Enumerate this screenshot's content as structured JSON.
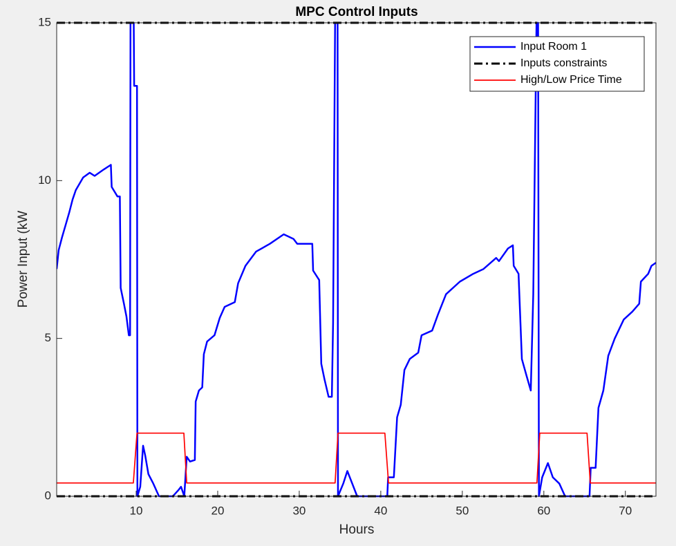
{
  "chart_data": {
    "type": "line",
    "title": "MPC Control Inputs",
    "x_label": "Hours",
    "y_label": "Power Input (kW",
    "xlim": [
      0.25,
      73.75
    ],
    "ylim": [
      0,
      15
    ],
    "xticks": [
      10,
      20,
      30,
      40,
      50,
      60,
      70
    ],
    "yticks": [
      0,
      5,
      10,
      15
    ],
    "legend": "top-right",
    "series": [
      {
        "name": "Input Room 1",
        "color": "#0000ff",
        "x": [
          0.25,
          0.5,
          0.9,
          1.35,
          1.8,
          2.2,
          2.6,
          3.5,
          4.3,
          4.9,
          6.0,
          6.9,
          7.0,
          7.7,
          8.0,
          8.1,
          8.5,
          8.8,
          9.1,
          9.25,
          9.3,
          9.7,
          9.75,
          10.1,
          10.15,
          10.5,
          10.85,
          11.1,
          11.5,
          12.1,
          12.8,
          13.6,
          14.5,
          15.2,
          15.5,
          15.9,
          16.2,
          16.6,
          17.2,
          17.3,
          17.7,
          18.1,
          18.3,
          18.7,
          19.6,
          20.25,
          20.85,
          22.1,
          22.5,
          23.4,
          24.7,
          26.4,
          28.1,
          29.3,
          29.75,
          31.6,
          31.7,
          32.45,
          32.7,
          33.1,
          33.6,
          34.0,
          34.15,
          34.4,
          34.7,
          34.75,
          35.4,
          35.9,
          36.5,
          37.1,
          39.1,
          40.8,
          40.9,
          41.6,
          42.0,
          42.45,
          42.9,
          43.55,
          44.6,
          45.0,
          46.3,
          47.0,
          48.0,
          49.7,
          51.35,
          52.6,
          54.15,
          54.5,
          55.6,
          56.2,
          56.3,
          56.9,
          57.3,
          57.9,
          58.4,
          58.7,
          59.1,
          59.3,
          59.4,
          59.8,
          60.5,
          61.1,
          61.9,
          62.6,
          65.6,
          65.75,
          66.35,
          66.7,
          67.3,
          67.9,
          68.7,
          69.8,
          70.85,
          71.7,
          71.9,
          72.8,
          73.2,
          73.75
        ],
        "values": [
          7.2,
          7.8,
          8.2,
          8.6,
          9.0,
          9.4,
          9.7,
          10.1,
          10.25,
          10.15,
          10.35,
          10.5,
          9.8,
          9.5,
          9.5,
          6.6,
          6.1,
          5.7,
          5.1,
          5.1,
          15,
          15,
          13.0,
          13.0,
          0,
          0.3,
          1.6,
          1.3,
          0.7,
          0.4,
          0,
          0,
          0,
          0.2,
          0.3,
          0,
          1.25,
          1.1,
          1.15,
          3.0,
          3.35,
          3.45,
          4.5,
          4.9,
          5.1,
          5.65,
          6.0,
          6.15,
          6.75,
          7.3,
          7.75,
          8.0,
          8.3,
          8.15,
          8.0,
          8.0,
          7.15,
          6.85,
          4.2,
          3.7,
          3.15,
          3.15,
          5.5,
          15,
          15,
          0,
          0.4,
          0.8,
          0.4,
          0,
          0,
          0,
          0.6,
          0.6,
          2.5,
          2.9,
          4.0,
          4.35,
          4.55,
          5.1,
          5.25,
          5.75,
          6.4,
          6.8,
          7.05,
          7.2,
          7.55,
          7.45,
          7.85,
          7.95,
          7.3,
          7.05,
          4.35,
          3.8,
          3.35,
          6.4,
          15,
          15,
          0,
          0.6,
          1.05,
          0.6,
          0.4,
          0,
          0,
          0.9,
          0.9,
          2.8,
          3.35,
          4.45,
          5.0,
          5.6,
          5.85,
          6.1,
          6.8,
          7.05,
          7.3,
          7.4
        ]
      },
      {
        "name": "Inputs constraints",
        "color": "#000000",
        "x": [
          0.25,
          73.75,
          73.75,
          0.25,
          73.75
        ],
        "values": [
          15,
          15,
          null,
          0,
          0
        ]
      },
      {
        "name": "High/Low Price Time",
        "color": "#ff0000",
        "x": [
          0.25,
          9.65,
          10.1,
          15.85,
          16.2,
          34.4,
          34.75,
          40.5,
          40.95,
          59.15,
          59.5,
          65.3,
          65.7,
          73.75
        ],
        "values": [
          0.42,
          0.42,
          2.0,
          2.0,
          0.42,
          0.42,
          2.0,
          2.0,
          0.42,
          0.42,
          2.0,
          2.0,
          0.42,
          0.42
        ]
      }
    ]
  }
}
